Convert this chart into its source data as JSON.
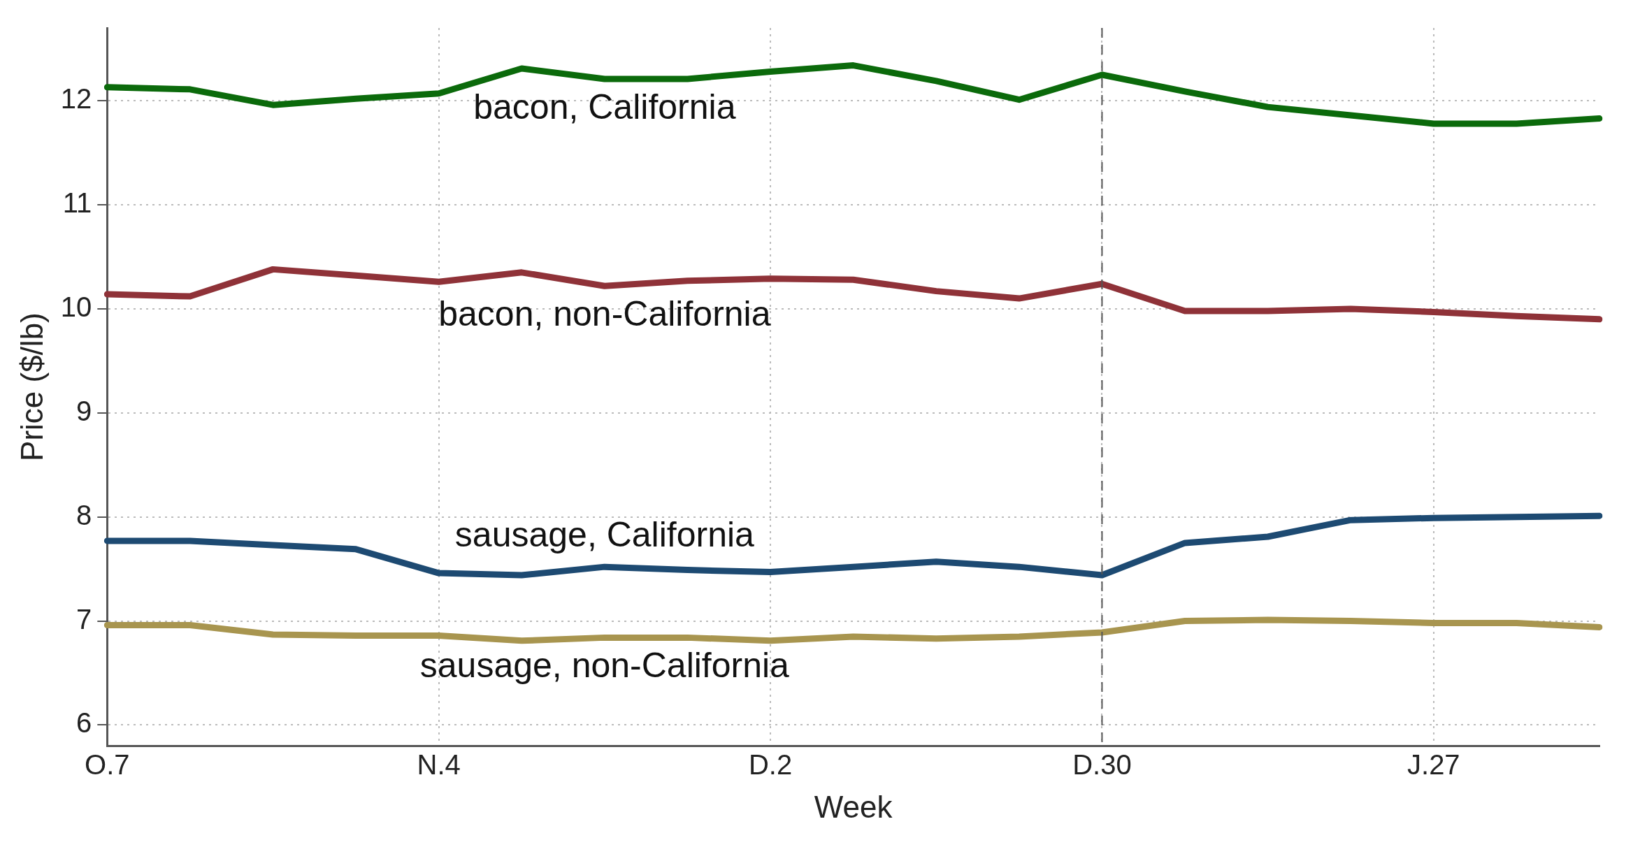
{
  "chart_data": {
    "type": "line",
    "xlabel": "Week",
    "ylabel": "Price ($/lb)",
    "categories": [
      "O.7",
      null,
      null,
      null,
      "N.4",
      null,
      null,
      null,
      "D.2",
      null,
      null,
      null,
      "D.30",
      null,
      null,
      null,
      "J.27",
      null,
      null
    ],
    "series": [
      {
        "name": "bacon, California",
        "color": "#0b6a0b",
        "values": [
          12.13,
          12.11,
          11.96,
          12.02,
          12.07,
          12.31,
          12.21,
          12.21,
          12.28,
          12.34,
          12.19,
          12.01,
          12.25,
          12.09,
          11.94,
          11.86,
          11.78,
          11.78,
          11.83
        ]
      },
      {
        "name": "bacon, non-California",
        "color": "#8f3238",
        "values": [
          10.14,
          10.12,
          10.38,
          10.32,
          10.26,
          10.35,
          10.22,
          10.27,
          10.29,
          10.28,
          10.17,
          10.1,
          10.24,
          9.98,
          9.98,
          10.0,
          9.97,
          9.93,
          9.9
        ]
      },
      {
        "name": "sausage, California",
        "color": "#1d4a72",
        "values": [
          7.77,
          7.77,
          7.73,
          7.69,
          7.46,
          7.44,
          7.52,
          7.49,
          7.47,
          7.52,
          7.57,
          7.52,
          7.44,
          7.75,
          7.81,
          7.97,
          7.99,
          8.0,
          8.01
        ]
      },
      {
        "name": "sausage, non-California",
        "color": "#a8954f",
        "values": [
          6.96,
          6.96,
          6.87,
          6.86,
          6.86,
          6.81,
          6.84,
          6.84,
          6.81,
          6.85,
          6.83,
          6.85,
          6.89,
          7.0,
          7.01,
          7.0,
          6.98,
          6.98,
          6.94
        ]
      }
    ],
    "ylim": [
      5.8,
      12.7
    ],
    "yticks": [
      6,
      7,
      8,
      9,
      10,
      11,
      12
    ],
    "grid": true,
    "legend": false,
    "line_style": "solid",
    "marker": "none",
    "ref_lines": [
      {
        "axis": "x",
        "value": "D.30",
        "color": "#555555",
        "line_style": "dashed"
      }
    ]
  }
}
